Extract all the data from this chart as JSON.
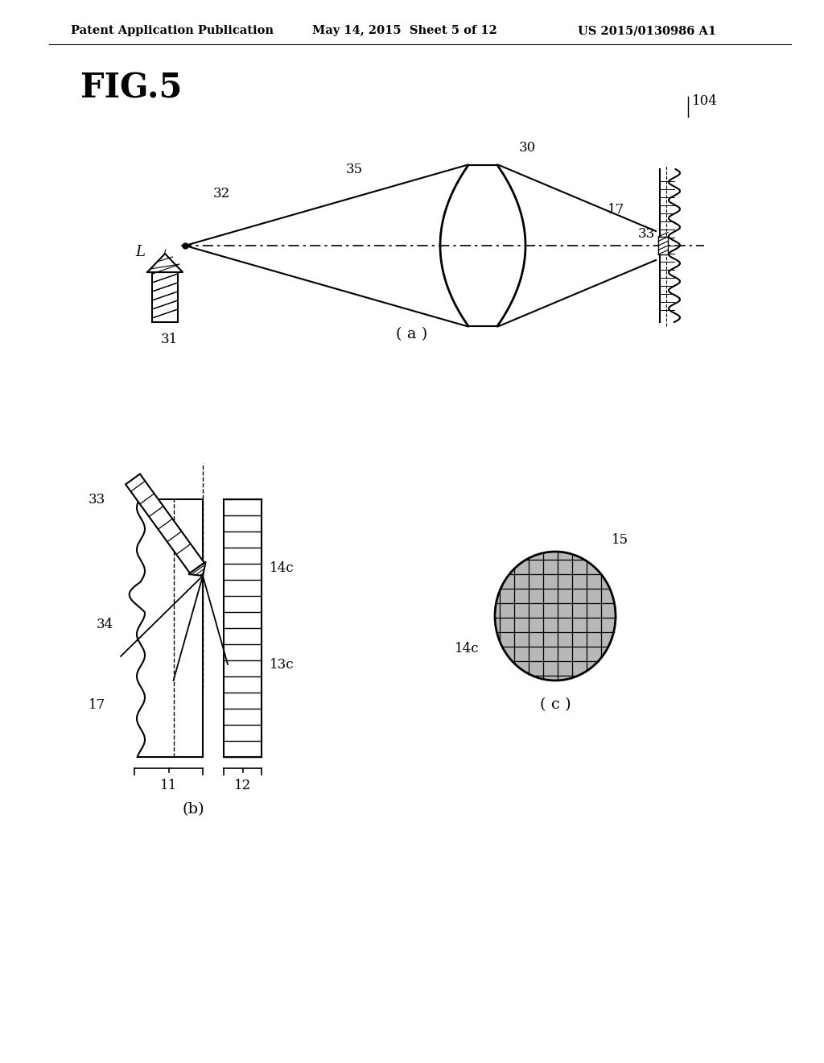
{
  "header_left": "Patent Application Publication",
  "header_mid": "May 14, 2015  Sheet 5 of 12",
  "header_right": "US 2015/0130986 A1",
  "fig_label": "FIG.5",
  "sub_a_label": "( a )",
  "sub_b_label": "(b)",
  "sub_c_label": "( c )",
  "background": "#ffffff",
  "line_color": "#000000"
}
